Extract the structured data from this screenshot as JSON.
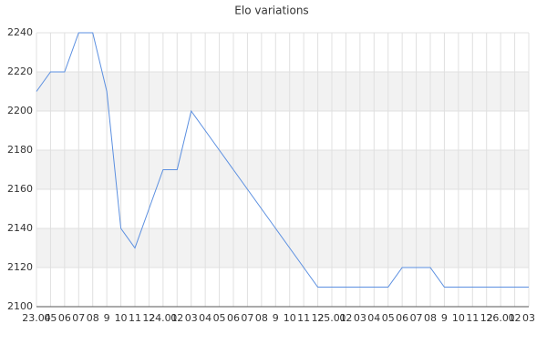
{
  "chart_data": {
    "type": "line",
    "title": "Elo variations",
    "categories": [
      "23.04",
      "05",
      "06",
      "07",
      "08",
      "9",
      "10",
      "11",
      "12",
      "24.01",
      "02",
      "03",
      "04",
      "05",
      "06",
      "07",
      "08",
      "9",
      "10",
      "11",
      "12",
      "25.01",
      "02",
      "03",
      "04",
      "05",
      "06",
      "07",
      "08",
      "9",
      "10",
      "11",
      "12",
      "26.01",
      "02",
      "03"
    ],
    "series": [
      {
        "name": "Elo",
        "color": "#5b8fe0",
        "values": [
          2210,
          2220,
          2220,
          2240,
          2240,
          2210,
          2140,
          2130,
          2150,
          2170,
          2170,
          2200,
          2190,
          2180,
          2170,
          2160,
          2150,
          2140,
          2130,
          2120,
          2110,
          2110,
          2110,
          2110,
          2110,
          2110,
          2120,
          2120,
          2120,
          2110,
          2110,
          2110,
          2110,
          2110,
          2110,
          2110
        ]
      }
    ],
    "ylim": [
      2100,
      2240
    ],
    "yticks": [
      2100,
      2120,
      2140,
      2160,
      2180,
      2200,
      2220,
      2240
    ],
    "grid": true
  }
}
